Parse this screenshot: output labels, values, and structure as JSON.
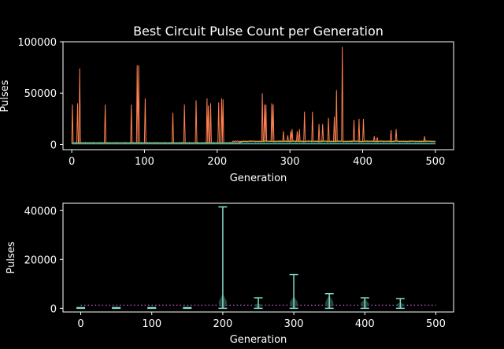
{
  "chart_data": [
    {
      "type": "line",
      "title": "Best Circuit Pulse Count per Generation",
      "xlabel": "Generation",
      "ylabel": "Pulses",
      "xlim": [
        -12,
        525
      ],
      "ylim": [
        -5000,
        100000
      ],
      "xticks": [
        0,
        100,
        200,
        300,
        400,
        500
      ],
      "yticks": [
        0,
        50000,
        100000
      ],
      "grid": false,
      "legend": "none",
      "series": [
        {
          "color": "#ff7f50",
          "baseline": 1200,
          "spikes": [
            [
              1,
              39000
            ],
            [
              8,
              40000
            ],
            [
              11,
              74000
            ],
            [
              46,
              39000
            ],
            [
              82,
              39000
            ],
            [
              90,
              77000
            ],
            [
              92,
              77000
            ],
            [
              101,
              45000
            ],
            [
              139,
              31000
            ],
            [
              155,
              39000
            ],
            [
              171,
              43000
            ],
            [
              186,
              45000
            ],
            [
              188,
              38000
            ],
            [
              191,
              40000
            ],
            [
              202,
              41000
            ],
            [
              206,
              45000
            ],
            [
              208,
              44000
            ],
            [
              262,
              50000
            ],
            [
              265,
              39000
            ],
            [
              267,
              39000
            ],
            [
              275,
              40000
            ],
            [
              277,
              39000
            ],
            [
              291,
              13000
            ],
            [
              297,
              9000
            ],
            [
              301,
              13000
            ],
            [
              303,
              15000
            ],
            [
              310,
              13000
            ],
            [
              313,
              15000
            ],
            [
              320,
              32000
            ],
            [
              331,
              32000
            ],
            [
              340,
              20000
            ],
            [
              345,
              20000
            ],
            [
              353,
              26000
            ],
            [
              361,
              27000
            ],
            [
              364,
              53000
            ],
            [
              372,
              95000
            ],
            [
              388,
              24000
            ],
            [
              395,
              25000
            ],
            [
              401,
              25000
            ],
            [
              416,
              8000
            ],
            [
              420,
              7000
            ],
            [
              439,
              14000
            ],
            [
              446,
              15000
            ],
            [
              485,
              8000
            ]
          ]
        },
        {
          "color": "#cfa93a",
          "level": 1700,
          "level_late": 3000
        },
        {
          "color": "#3cb44b",
          "level": 600
        },
        {
          "color": "#7ee87a",
          "level": 1100
        },
        {
          "color": "#2aa198",
          "level": 900
        }
      ],
      "reference": {
        "style": "dotted",
        "color": "#55b0ff",
        "value": 1200
      }
    },
    {
      "type": "violin",
      "xlabel": "Generation",
      "ylabel": "Pulses",
      "xlim": [
        -25,
        525
      ],
      "ylim": [
        -1500,
        43000
      ],
      "xticks": [
        0,
        100,
        200,
        300,
        400,
        500
      ],
      "yticks": [
        0,
        20000,
        40000
      ],
      "grid": false,
      "color": "#7fdcc8",
      "body_color": "#2e4a44",
      "reference": {
        "style": "dotted",
        "color": "#d070e0",
        "value": 1300
      },
      "groups": [
        {
          "x": 0,
          "min": 0,
          "max": 300,
          "body": 0
        },
        {
          "x": 50,
          "min": 0,
          "max": 300,
          "body": 0
        },
        {
          "x": 100,
          "min": 0,
          "max": 300,
          "body": 0
        },
        {
          "x": 150,
          "min": 0,
          "max": 300,
          "body": 0
        },
        {
          "x": 200,
          "min": 0,
          "max": 41500,
          "body": 6000
        },
        {
          "x": 250,
          "min": 0,
          "max": 4300,
          "body": 2000
        },
        {
          "x": 300,
          "min": 0,
          "max": 13800,
          "body": 5000
        },
        {
          "x": 350,
          "min": 0,
          "max": 6000,
          "body": 5500
        },
        {
          "x": 400,
          "min": 0,
          "max": 4300,
          "body": 4000
        },
        {
          "x": 450,
          "min": 0,
          "max": 4000,
          "body": 2500
        }
      ]
    }
  ]
}
